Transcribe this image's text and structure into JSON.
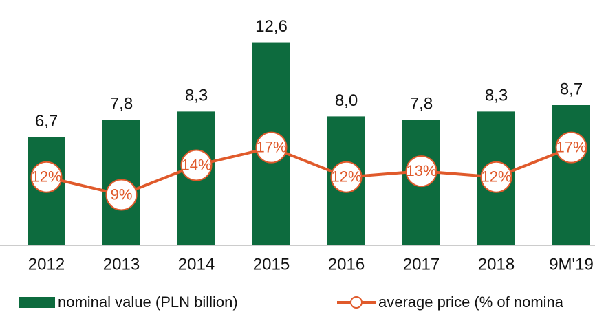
{
  "chart_data": {
    "type": "bar",
    "categories": [
      "2012",
      "2013",
      "2014",
      "2015",
      "2016",
      "2017",
      "2018",
      "9M'19"
    ],
    "series": [
      {
        "name": "nominal value (PLN billion)",
        "type": "bar",
        "color": "#0d6b3e",
        "values": [
          6.7,
          7.8,
          8.3,
          12.6,
          8.0,
          7.8,
          8.3,
          8.7
        ],
        "value_labels": [
          "6,7",
          "7,8",
          "8,3",
          "12,6",
          "8,0",
          "7,8",
          "8,3",
          "8,7"
        ]
      },
      {
        "name": "average price (% of nomina",
        "type": "line",
        "color": "#e05a2b",
        "axis": "y2",
        "values": [
          12,
          9,
          14,
          17,
          12,
          13,
          12,
          17
        ],
        "value_labels": [
          "12%",
          "9%",
          "14%",
          "17%",
          "12%",
          "13%",
          "12%",
          "17%"
        ]
      }
    ],
    "ylim": [
      0,
      14.5
    ],
    "y2lim": [
      0,
      39.5
    ]
  }
}
